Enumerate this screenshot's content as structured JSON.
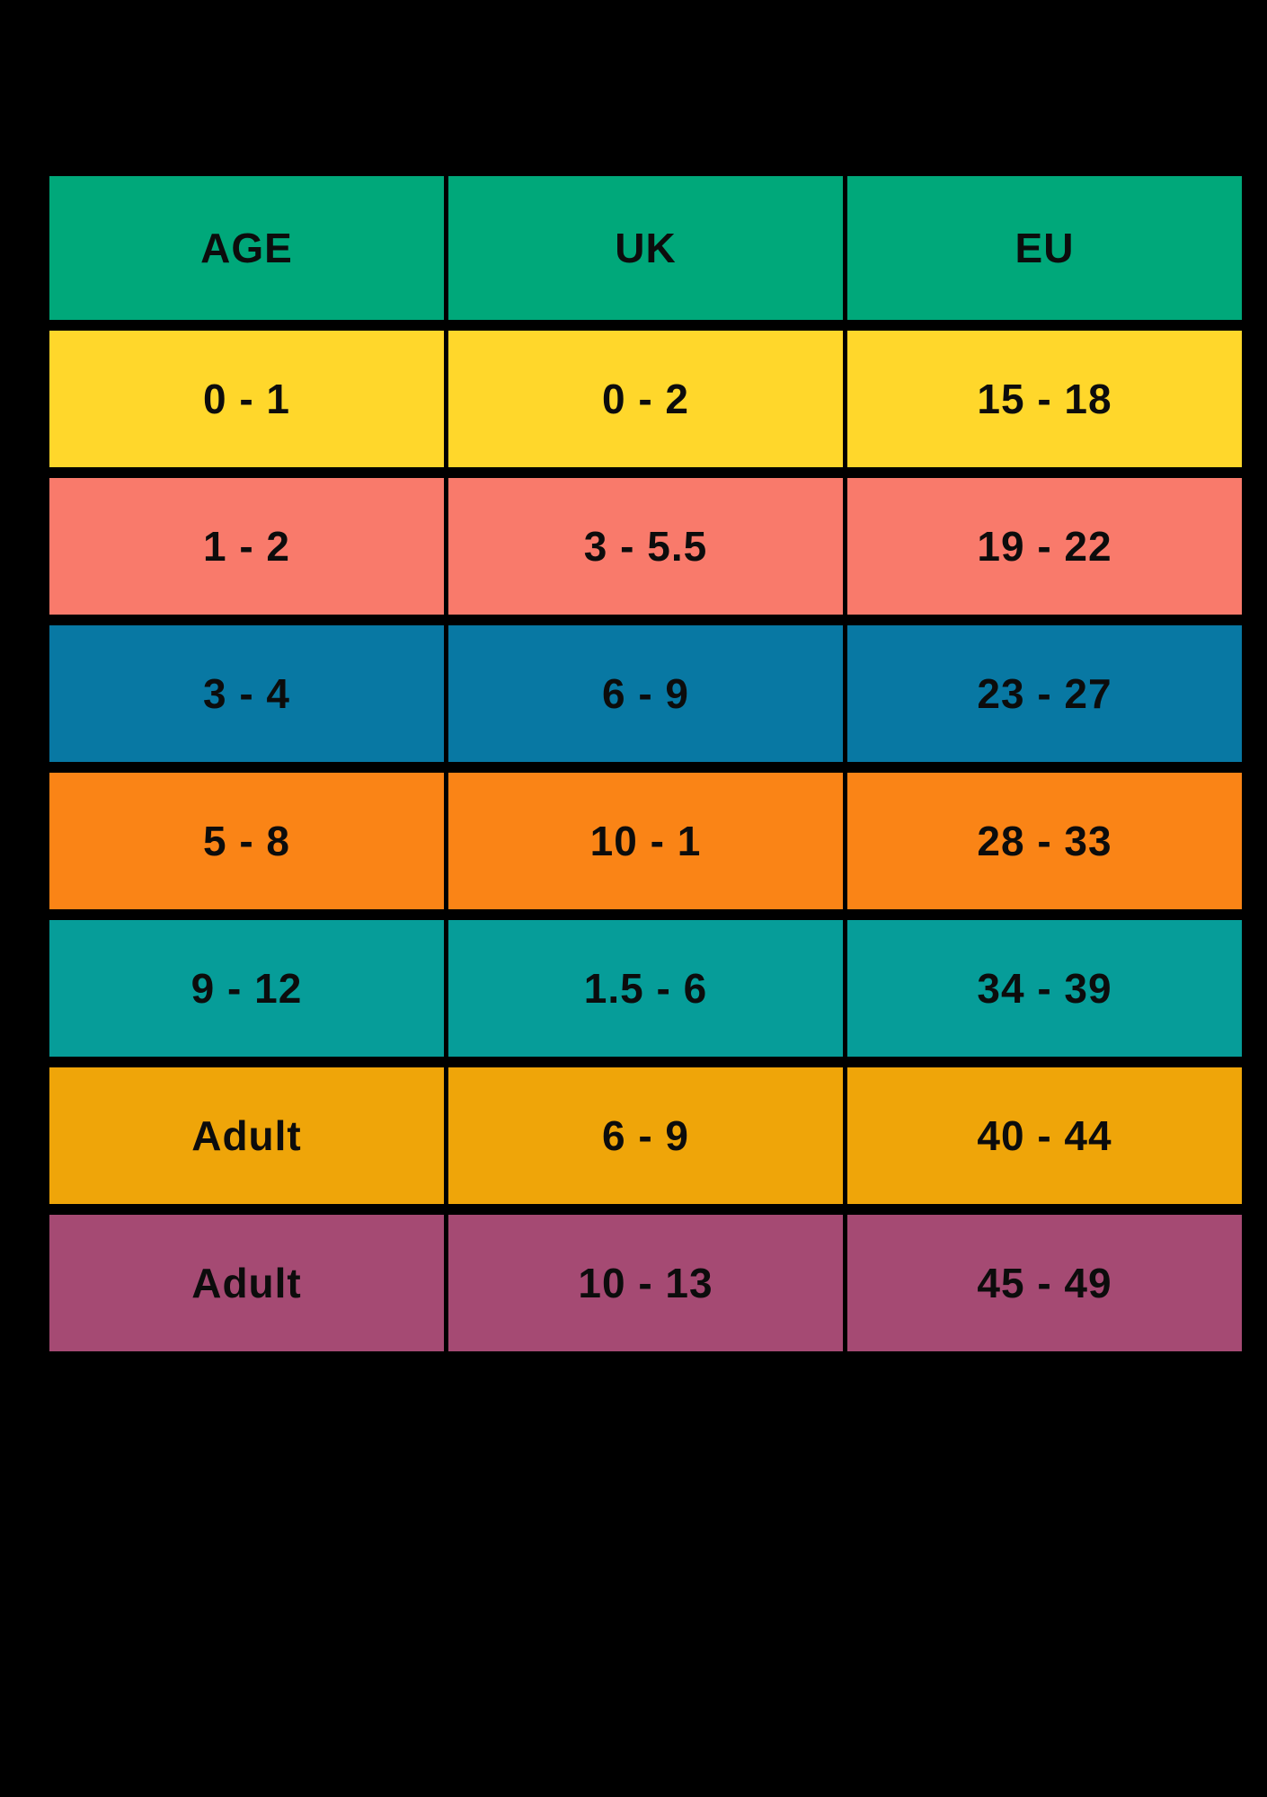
{
  "page": {
    "background": "#000000",
    "text_color": "#0c0c0c"
  },
  "chart_data": {
    "type": "table",
    "title": "",
    "columns": [
      "AGE",
      "UK",
      "EU"
    ],
    "header_color": "#00A87A",
    "rows": [
      {
        "cells": [
          "0 - 1",
          "0 - 2",
          "15 - 18"
        ],
        "color": "#FFD72B"
      },
      {
        "cells": [
          "1 - 2",
          "3 - 5.5",
          "19 - 22"
        ],
        "color": "#F97A6B"
      },
      {
        "cells": [
          "3 - 4",
          "6 - 9",
          "23 - 27"
        ],
        "color": "#0878A3"
      },
      {
        "cells": [
          "5 - 8",
          "10 - 1",
          "28 - 33"
        ],
        "color": "#FA8416"
      },
      {
        "cells": [
          "9 - 12",
          "1.5 - 6",
          "34 - 39"
        ],
        "color": "#069D99"
      },
      {
        "cells": [
          "Adult",
          "6 - 9",
          "40 - 44"
        ],
        "color": "#EFA509"
      },
      {
        "cells": [
          "Adult",
          "10 - 13",
          "45 - 49"
        ],
        "color": "#A54A73"
      }
    ]
  }
}
